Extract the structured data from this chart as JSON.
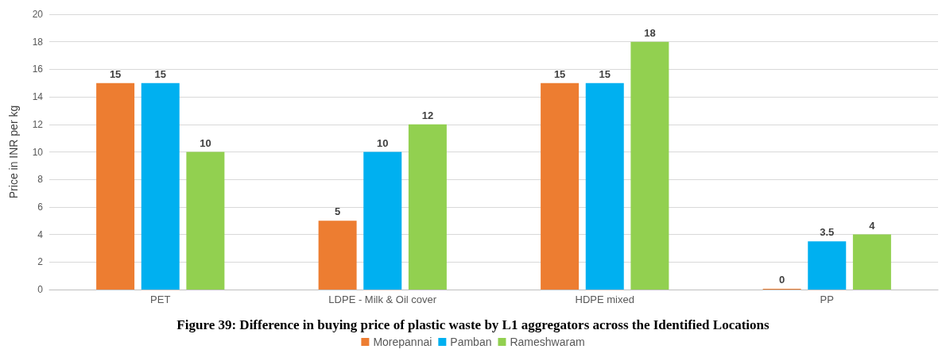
{
  "chart_data": {
    "type": "bar",
    "categories": [
      "PET",
      "LDPE - Milk & Oil cover",
      "HDPE mixed",
      "PP"
    ],
    "series": [
      {
        "name": "Morepannai",
        "color": "#ed7d31",
        "values": [
          15,
          5,
          15,
          0
        ]
      },
      {
        "name": "Pamban",
        "color": "#00b0f0",
        "values": [
          15,
          10,
          15,
          3.5
        ]
      },
      {
        "name": "Rameshwaram",
        "color": "#92d050",
        "values": [
          10,
          12,
          18,
          4
        ]
      }
    ],
    "ylabel": "Price in INR per kg",
    "ylim": [
      0,
      20
    ],
    "yticks": [
      0,
      2,
      4,
      6,
      8,
      10,
      12,
      14,
      16,
      18,
      20
    ],
    "grid": "y",
    "legend": "bottom",
    "data_labels": true,
    "annotations": [
      "Figure 39: Difference in buying price of plastic waste by L1 aggregators across the Identified Locations"
    ]
  }
}
